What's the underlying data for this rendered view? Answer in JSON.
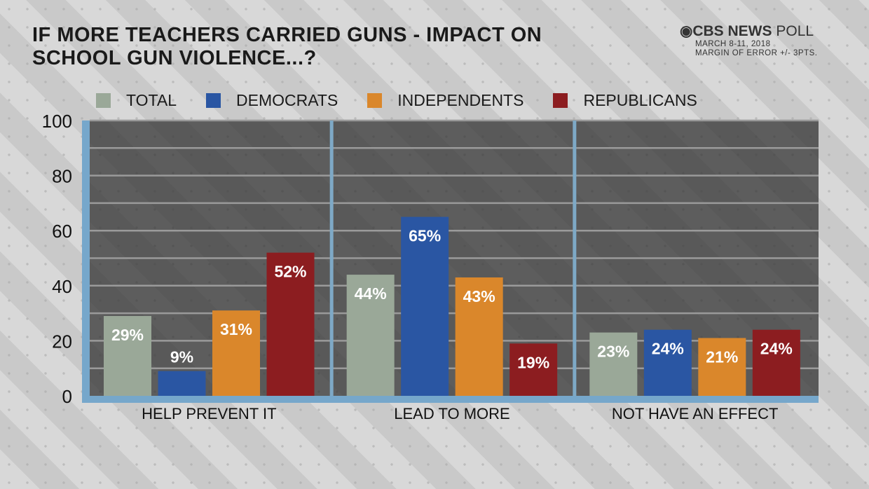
{
  "title_lines": [
    "IF MORE TEACHERS CARRIED GUNS - IMPACT ON",
    "SCHOOL GUN VIOLENCE...?"
  ],
  "brand": {
    "name_bold": "CBS NEWS",
    "name_light": "POLL",
    "date": "MARCH 8-11, 2018",
    "margin": "MARGIN OF ERROR +/- 3PTS."
  },
  "chart_data": {
    "type": "bar",
    "title": "IF MORE TEACHERS CARRIED GUNS - IMPACT ON SCHOOL GUN VIOLENCE...?",
    "categories": [
      "HELP PREVENT IT",
      "LEAD TO MORE",
      "NOT HAVE AN EFFECT"
    ],
    "series": [
      {
        "name": "TOTAL",
        "color": "#9aa898",
        "values": [
          29,
          44,
          23
        ]
      },
      {
        "name": "DEMOCRATS",
        "color": "#2a56a3",
        "values": [
          9,
          65,
          24
        ]
      },
      {
        "name": "INDEPENDENTS",
        "color": "#da872b",
        "values": [
          31,
          43,
          21
        ]
      },
      {
        "name": "REPUBLICANS",
        "color": "#8c1d20",
        "values": [
          52,
          19,
          24
        ]
      }
    ],
    "yticks": [
      0,
      20,
      40,
      60,
      80,
      100
    ],
    "ylim": [
      0,
      100
    ],
    "value_suffix": "%",
    "grid": true,
    "legend": "top"
  }
}
